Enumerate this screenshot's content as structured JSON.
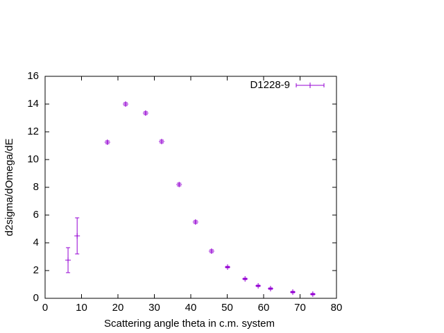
{
  "chart_data": {
    "type": "scatter",
    "x_label": "Scattering angle theta in c.m. system",
    "y_label": "d2sigma/dOmega/dE",
    "series": [
      {
        "name": "D1228-9",
        "color": "#9400d3",
        "x": [
          6.3,
          8.8,
          17.1,
          22.1,
          27.6,
          32.0,
          36.8,
          41.3,
          45.7,
          50.1,
          54.9,
          58.5,
          61.9,
          68.0,
          73.5
        ],
        "values": [
          2.75,
          4.5,
          11.25,
          14.0,
          13.35,
          11.3,
          8.2,
          5.5,
          3.4,
          2.25,
          1.4,
          0.9,
          0.7,
          0.45,
          0.3
        ],
        "errors": [
          0.9,
          1.3,
          0.1,
          0.1,
          0.1,
          0.1,
          0.1,
          0.1,
          0.1,
          0.05,
          0.05,
          0.05,
          0.05,
          0.05,
          0.05
        ]
      }
    ],
    "xlim": [
      0,
      80
    ],
    "xticks": [
      0,
      10,
      20,
      30,
      40,
      50,
      60,
      70,
      80
    ],
    "ylim": [
      0,
      16
    ],
    "yticks": [
      0,
      2,
      4,
      6,
      8,
      10,
      12,
      14,
      16
    ],
    "legend": "top right"
  }
}
